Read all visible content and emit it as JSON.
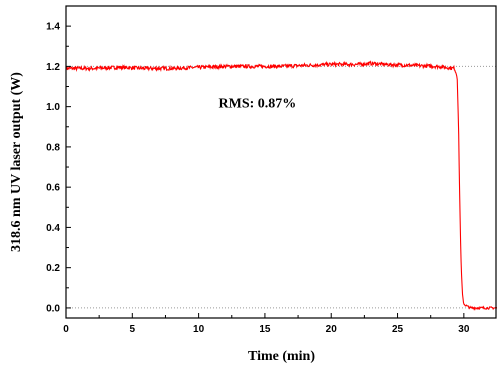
{
  "chart_data": {
    "type": "line",
    "xlabel": "Time  (min)",
    "ylabel": "318.6 nm UV laser output  (W)",
    "xlim": [
      0,
      32.5
    ],
    "ylim": [
      -0.05,
      1.5
    ],
    "xticks": [
      0,
      5,
      10,
      15,
      20,
      25,
      30
    ],
    "yticks": [
      0.0,
      0.2,
      0.4,
      0.6,
      0.8,
      1.0,
      1.2,
      1.4
    ],
    "xtick_labels": [
      "0",
      "5",
      "10",
      "15",
      "20",
      "25",
      "30"
    ],
    "ytick_labels": [
      "0.0",
      "0.2",
      "0.4",
      "0.6",
      "0.8",
      "1.0",
      "1.2",
      "1.4"
    ],
    "reference_lines": [
      1.2,
      0.0
    ],
    "annotation": "RMS: 0.87%",
    "series": [
      {
        "color": "#ff0000",
        "x": [
          0,
          2,
          4,
          6,
          8,
          10,
          12,
          14,
          16,
          18,
          20,
          22,
          23,
          24,
          26,
          28,
          29.3,
          29.5,
          29.6,
          29.7,
          29.8,
          29.9,
          30.0,
          30.2,
          30.5,
          31,
          32,
          32.5
        ],
        "y": [
          1.19,
          1.19,
          1.195,
          1.19,
          1.19,
          1.195,
          1.2,
          1.2,
          1.2,
          1.205,
          1.21,
          1.21,
          1.215,
          1.21,
          1.205,
          1.2,
          1.19,
          1.15,
          0.9,
          0.5,
          0.2,
          0.06,
          0.02,
          0.01,
          0.0,
          0.0,
          0.0,
          0.0
        ]
      }
    ]
  }
}
